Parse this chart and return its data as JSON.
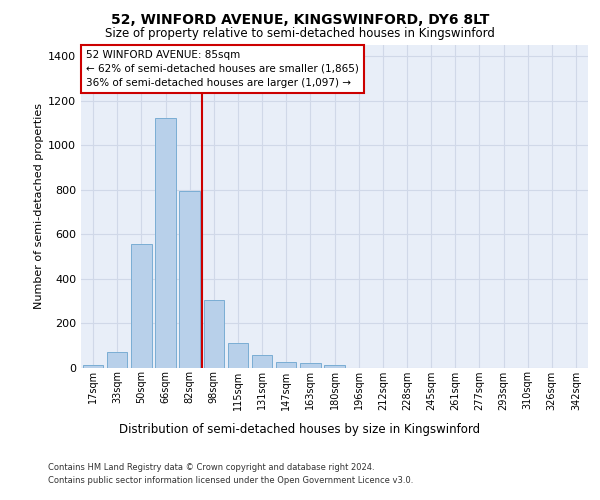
{
  "title_line1": "52, WINFORD AVENUE, KINGSWINFORD, DY6 8LT",
  "title_line2": "Size of property relative to semi-detached houses in Kingswinford",
  "xlabel": "Distribution of semi-detached houses by size in Kingswinford",
  "ylabel": "Number of semi-detached properties",
  "categories": [
    "17sqm",
    "33sqm",
    "50sqm",
    "66sqm",
    "82sqm",
    "98sqm",
    "115sqm",
    "131sqm",
    "147sqm",
    "163sqm",
    "180sqm",
    "196sqm",
    "212sqm",
    "228sqm",
    "245sqm",
    "261sqm",
    "277sqm",
    "293sqm",
    "310sqm",
    "326sqm",
    "342sqm"
  ],
  "values": [
    10,
    70,
    555,
    1120,
    795,
    305,
    110,
    55,
    25,
    18,
    10,
    0,
    0,
    0,
    0,
    0,
    0,
    0,
    0,
    0,
    0
  ],
  "bar_color": "#b8d0ea",
  "bar_edge_color": "#7aadd4",
  "annotation_title": "52 WINFORD AVENUE: 85sqm",
  "annotation_line2": "← 62% of semi-detached houses are smaller (1,865)",
  "annotation_line3": "36% of semi-detached houses are larger (1,097) →",
  "vline_color": "#cc0000",
  "annotation_box_color": "#ffffff",
  "annotation_box_edge": "#cc0000",
  "vline_x": 4.5,
  "ylim": [
    0,
    1450
  ],
  "yticks": [
    0,
    200,
    400,
    600,
    800,
    1000,
    1200,
    1400
  ],
  "grid_color": "#d0d8e8",
  "background_color": "#e8eef8",
  "footnote1": "Contains HM Land Registry data © Crown copyright and database right 2024.",
  "footnote2": "Contains public sector information licensed under the Open Government Licence v3.0."
}
